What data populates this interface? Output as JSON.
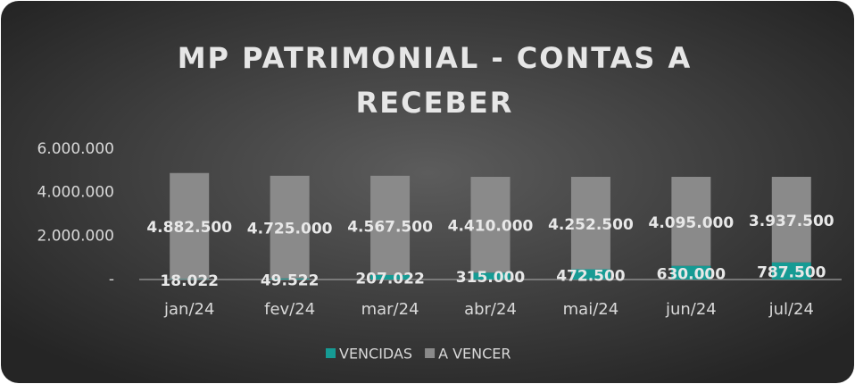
{
  "chart_data": {
    "type": "stacked_bar",
    "title": "MP PATRIMONIAL - CONTAS A RECEBER",
    "categories": [
      "jan/24",
      "fev/24",
      "mar/24",
      "abr/24",
      "mai/24",
      "jun/24",
      "jul/24"
    ],
    "series": [
      {
        "name": "VENCIDAS",
        "color": "#169b94",
        "values": [
          18022,
          49522,
          207022,
          315000,
          472500,
          630000,
          787500
        ],
        "value_labels": [
          "18.022",
          "49.522",
          "207.022",
          "315.000",
          "472.500",
          "630.000",
          "787.500"
        ]
      },
      {
        "name": "A VENCER",
        "color": "#8a8a8a",
        "values": [
          4882500,
          4725000,
          4567500,
          4410000,
          4252500,
          4095000,
          3937500
        ],
        "value_labels": [
          "4.882.500",
          "4.725.000",
          "4.567.500",
          "4.410.000",
          "4.252.500",
          "4.095.000",
          "3.937.500"
        ]
      }
    ],
    "ylim": [
      0,
      6000000
    ],
    "yticks": [
      {
        "value": 0,
        "label": "-"
      },
      {
        "value": 2000000,
        "label": "2.000.000"
      },
      {
        "value": 4000000,
        "label": "4.000.000"
      },
      {
        "value": 6000000,
        "label": "6.000.000"
      }
    ],
    "grid": false,
    "legend": "bottom"
  }
}
